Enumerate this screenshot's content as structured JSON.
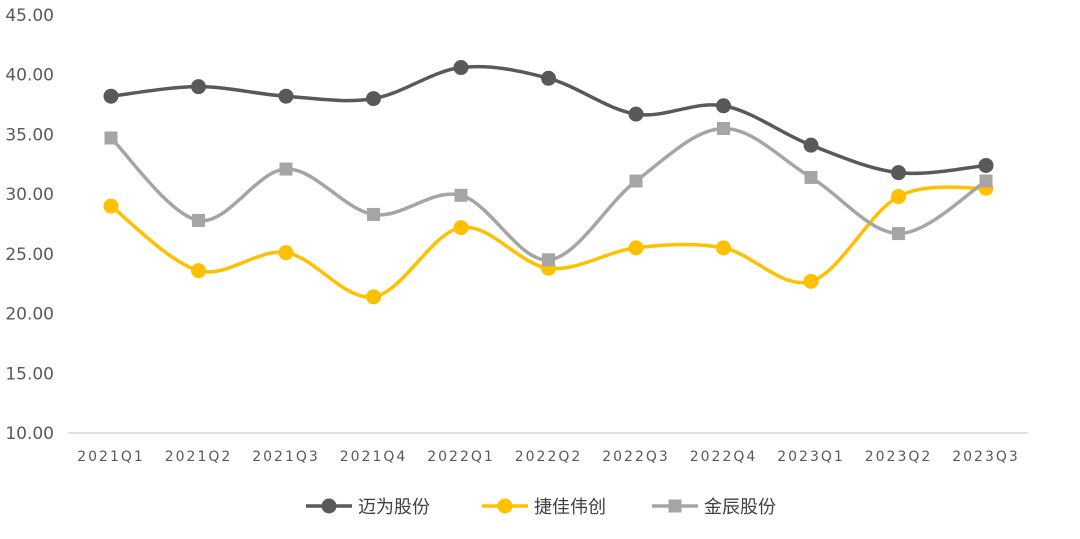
{
  "chart_data": {
    "type": "line",
    "categories": [
      "2021Q1",
      "2021Q2",
      "2021Q3",
      "2021Q4",
      "2022Q1",
      "2022Q2",
      "2022Q3",
      "2022Q4",
      "2023Q1",
      "2023Q2",
      "2023Q3"
    ],
    "yticks": [
      "10.00",
      "15.00",
      "20.00",
      "25.00",
      "30.00",
      "35.00",
      "40.00",
      "45.00"
    ],
    "ylim": [
      10,
      45
    ],
    "grid": false,
    "legend_position": "bottom",
    "smooth": true,
    "series": [
      {
        "name": "迈为股份",
        "color": "#595959",
        "marker": "circle",
        "values": [
          38.2,
          39.0,
          38.2,
          38.0,
          40.6,
          39.7,
          36.7,
          37.4,
          34.1,
          31.8,
          32.4
        ]
      },
      {
        "name": "捷佳伟创",
        "color": "#FFC000",
        "marker": "circle",
        "values": [
          29.0,
          23.6,
          25.1,
          21.4,
          27.2,
          23.8,
          25.5,
          25.5,
          22.7,
          29.8,
          30.5
        ]
      },
      {
        "name": "金辰股份",
        "color": "#A5A5A5",
        "marker": "square",
        "values": [
          34.7,
          27.8,
          32.1,
          28.3,
          29.9,
          24.5,
          31.1,
          35.5,
          31.4,
          26.7,
          31.1
        ]
      }
    ]
  }
}
